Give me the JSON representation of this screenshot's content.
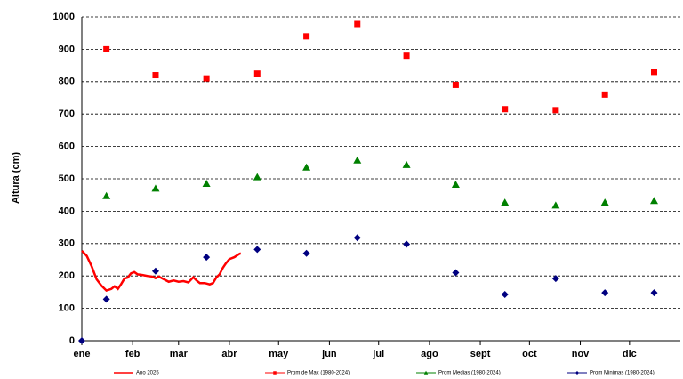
{
  "chart_data": {
    "type": "line",
    "ylabel": "Altura (cm)",
    "xlim": [
      0,
      365
    ],
    "ylim": [
      0,
      1000
    ],
    "xticks": [
      {
        "value": 0,
        "label": "ene"
      },
      {
        "value": 31,
        "label": "feb"
      },
      {
        "value": 59,
        "label": "mar"
      },
      {
        "value": 90,
        "label": "abr"
      },
      {
        "value": 120,
        "label": "may"
      },
      {
        "value": 151,
        "label": "jun"
      },
      {
        "value": 181,
        "label": "jul"
      },
      {
        "value": 212,
        "label": "ago"
      },
      {
        "value": 243,
        "label": "sept"
      },
      {
        "value": 273,
        "label": "oct"
      },
      {
        "value": 304,
        "label": "nov"
      },
      {
        "value": 334,
        "label": "dic"
      }
    ],
    "yticks": [
      0,
      100,
      200,
      300,
      400,
      500,
      600,
      700,
      800,
      900,
      1000
    ],
    "grid": true,
    "legend": "bottom",
    "series": [
      {
        "name": "Ano 2025",
        "color": "#ff0000",
        "marker": "none",
        "x": [
          0,
          3,
          6,
          9,
          12,
          15,
          18,
          20,
          22,
          24,
          26,
          28,
          30,
          32,
          34,
          37,
          40,
          43,
          45,
          47,
          50,
          53,
          56,
          59,
          62,
          65,
          68,
          70,
          72,
          75,
          78,
          80,
          82,
          84,
          86,
          88,
          90,
          93,
          96,
          97
        ],
        "values": [
          278,
          262,
          230,
          190,
          170,
          155,
          160,
          168,
          160,
          175,
          192,
          195,
          208,
          212,
          205,
          203,
          200,
          198,
          193,
          198,
          190,
          182,
          186,
          182,
          184,
          180,
          196,
          186,
          178,
          178,
          174,
          178,
          195,
          205,
          225,
          240,
          252,
          258,
          268,
          270
        ]
      },
      {
        "name": "Prom de Max (1980-2024)",
        "color": "#ff0000",
        "marker": "square",
        "x": [
          15,
          45,
          76,
          107,
          137,
          168,
          198,
          228,
          258,
          289,
          319,
          349
        ],
        "values": [
          900,
          820,
          810,
          825,
          940,
          978,
          880,
          790,
          715,
          712,
          760,
          830
        ]
      },
      {
        "name": "Prom Medias (1980-2024)",
        "color": "#008000",
        "marker": "triangle",
        "x": [
          15,
          45,
          76,
          107,
          137,
          168,
          198,
          228,
          258,
          289,
          319,
          349
        ],
        "values": [
          447,
          470,
          485,
          505,
          535,
          557,
          543,
          482,
          427,
          418,
          427,
          432
        ]
      },
      {
        "name": "Prom Minimas (1980-2024)",
        "color": "#000080",
        "marker": "diamond",
        "x": [
          0,
          15,
          45,
          76,
          107,
          137,
          168,
          198,
          228,
          258,
          289,
          319,
          349
        ],
        "values": [
          0,
          128,
          215,
          258,
          282,
          270,
          318,
          298,
          210,
          143,
          192,
          148,
          148
        ]
      }
    ]
  }
}
